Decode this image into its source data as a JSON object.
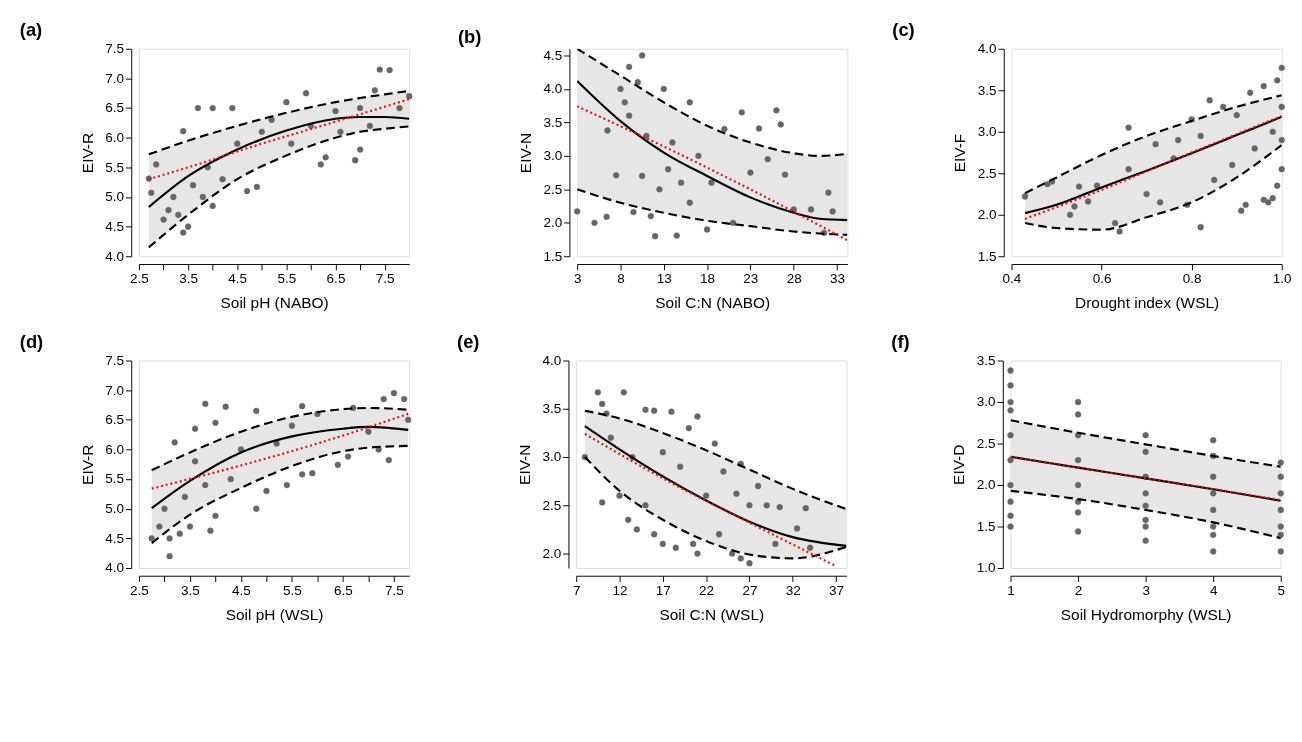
{
  "chart_data": [
    {
      "type": "scatter",
      "title": "(a)",
      "xlabel": "Soil pH (NABO)",
      "ylabel": "EIV-R",
      "xlim": [
        2.5,
        8.0
      ],
      "ylim": [
        4.0,
        7.5
      ],
      "xticks": [
        2.5,
        {
          "value": 3,
          "label": null
        },
        3.5,
        {
          "value": 4,
          "label": null
        },
        4.5,
        {
          "value": 5,
          "label": null
        },
        5.5,
        {
          "value": 6,
          "label": null
        },
        6.5,
        {
          "value": 7,
          "label": null
        },
        7.5
      ],
      "yticks": [
        {
          "value": 4,
          "label": "4.0"
        },
        4.5,
        {
          "value": 5,
          "label": "5.0"
        },
        5.5,
        {
          "value": 6,
          "label": "6.0"
        },
        6.5,
        {
          "value": 7,
          "label": "7.0"
        },
        7.5
      ],
      "series": [
        {
          "type": "scatter",
          "color": "#666666",
          "marker": "circle",
          "x": [
            2.7,
            2.75,
            2.85,
            3.0,
            3.1,
            3.2,
            3.3,
            3.4,
            3.4,
            3.5,
            3.6,
            3.7,
            3.8,
            3.9,
            4.0,
            4.0,
            4.2,
            4.4,
            4.5,
            4.7,
            4.9,
            5.0,
            5.2,
            5.5,
            5.6,
            5.9,
            6.0,
            6.2,
            6.3,
            6.5,
            6.6,
            6.9,
            7.0,
            7.0,
            7.2,
            7.3,
            7.4,
            7.6,
            7.8,
            8.0
          ],
          "values": [
            5.31,
            5.07,
            5.55,
            4.62,
            4.78,
            5.0,
            4.7,
            4.4,
            6.11,
            4.5,
            5.2,
            6.5,
            5.0,
            5.5,
            6.5,
            4.85,
            5.3,
            6.5,
            5.9,
            5.1,
            5.17,
            6.1,
            6.3,
            6.6,
            5.9,
            6.75,
            6.2,
            5.55,
            5.67,
            6.45,
            6.1,
            5.62,
            5.8,
            6.5,
            6.2,
            6.8,
            7.15,
            7.14,
            6.5,
            6.7
          ]
        },
        {
          "type": "line",
          "color": "#000000",
          "line_style": "solid",
          "x": [
            2.7,
            3.5,
            4.5,
            5.5,
            6.5,
            7.0,
            7.5,
            8.0
          ],
          "values": [
            4.83,
            5.35,
            5.8,
            6.12,
            6.32,
            6.35,
            6.35,
            6.32
          ],
          "lower": [
            4.15,
            4.7,
            5.3,
            5.7,
            6.0,
            6.1,
            6.15,
            6.19
          ],
          "upper": [
            5.72,
            5.95,
            6.2,
            6.42,
            6.6,
            6.67,
            6.73,
            6.79
          ]
        },
        {
          "type": "line",
          "color": "#000000",
          "line_style": "dashed",
          "x": [
            2.7,
            3.5,
            4.5,
            5.5,
            6.5,
            7.0,
            7.5,
            8.0
          ],
          "values": [
            4.15,
            4.7,
            5.3,
            5.7,
            6.0,
            6.1,
            6.15,
            6.19
          ]
        },
        {
          "type": "line",
          "color": "#000000",
          "line_style": "dashed",
          "x": [
            2.7,
            3.5,
            4.5,
            5.5,
            6.5,
            7.0,
            7.5,
            8.0
          ],
          "values": [
            5.72,
            5.95,
            6.2,
            6.42,
            6.6,
            6.67,
            6.73,
            6.79
          ]
        },
        {
          "type": "line",
          "color": "#ff0000",
          "line_style": "dotted",
          "x": [
            2.7,
            3.5,
            5.0,
            6.5,
            8.0
          ],
          "values": [
            5.3,
            5.5,
            5.9,
            6.27,
            6.65
          ]
        }
      ]
    },
    {
      "type": "scatter",
      "title": "(b)",
      "xlabel": "Soil C:N (NABO)",
      "ylabel": "EIV-N",
      "xlim": [
        3,
        34.2
      ],
      "ylim": [
        1.5,
        4.6
      ],
      "xticks": [
        3,
        8,
        13,
        18,
        23,
        28,
        33
      ],
      "yticks": [
        1.5,
        {
          "value": 2,
          "label": "2.0"
        },
        2.5,
        {
          "value": 3,
          "label": "3.0"
        },
        3.5,
        {
          "value": 4,
          "label": "4.0"
        },
        4.5
      ],
      "series": [
        {
          "type": "scatter",
          "color": "#666666",
          "marker": "circle",
          "x": [
            3,
            5,
            6.4,
            6.5,
            7.5,
            8,
            8.5,
            9,
            9,
            9.5,
            10,
            10.5,
            10.5,
            11,
            11.5,
            12,
            12.5,
            13,
            13.5,
            14,
            14.5,
            15,
            16,
            16,
            17,
            18,
            18.5,
            20,
            21,
            22,
            23,
            24,
            25,
            26,
            26.5,
            27,
            28,
            30,
            32,
            32.5,
            31.5
          ],
          "values": [
            2.17,
            2.0,
            2.09,
            3.38,
            2.71,
            4.0,
            3.8,
            4.33,
            3.6,
            2.16,
            4.1,
            4.5,
            2.7,
            3.3,
            2.1,
            1.8,
            2.5,
            4.0,
            2.8,
            3.2,
            1.81,
            2.6,
            3.8,
            2.3,
            3.0,
            1.9,
            2.6,
            3.4,
            2.0,
            3.65,
            2.75,
            3.41,
            2.95,
            3.68,
            3.47,
            2.72,
            2.2,
            2.2,
            2.45,
            2.17,
            1.85
          ]
        },
        {
          "type": "line",
          "color": "#000000",
          "line_style": "solid",
          "x": [
            3,
            8,
            13,
            18,
            23,
            28,
            31,
            34.2
          ],
          "values": [
            4.12,
            3.52,
            3.05,
            2.7,
            2.38,
            2.15,
            2.06,
            2.04
          ],
          "lower": [
            2.5,
            2.3,
            2.15,
            2.03,
            1.95,
            1.87,
            1.84,
            1.82
          ],
          "upper": [
            4.6,
            4.2,
            3.8,
            3.45,
            3.2,
            3.04,
            3.0,
            3.03
          ]
        },
        {
          "type": "line",
          "color": "#000000",
          "line_style": "dashed",
          "x": [
            3,
            8,
            13,
            18,
            23,
            28,
            31,
            34.2
          ],
          "values": [
            2.5,
            2.3,
            2.15,
            2.03,
            1.95,
            1.87,
            1.84,
            1.82
          ]
        },
        {
          "type": "line",
          "color": "#000000",
          "line_style": "dashed",
          "x": [
            3,
            8,
            13,
            18,
            23,
            28,
            31,
            34.2
          ],
          "values": [
            4.6,
            4.2,
            3.8,
            3.45,
            3.2,
            3.04,
            3.0,
            3.03
          ]
        },
        {
          "type": "line",
          "color": "#ff0000",
          "line_style": "dotted",
          "x": [
            3,
            13,
            23,
            34.2
          ],
          "values": [
            3.74,
            3.14,
            2.5,
            1.74
          ]
        }
      ]
    },
    {
      "type": "scatter",
      "title": "(c)",
      "xlabel": "Drought index (WSL)",
      "ylabel": "EIV-F",
      "xlim": [
        0.4,
        1.0
      ],
      "ylim": [
        1.5,
        4.0
      ],
      "xticks": [
        0.4,
        0.6,
        0.8,
        {
          "value": 1,
          "label": "1.0"
        }
      ],
      "yticks": [
        1.5,
        {
          "value": 2,
          "label": "2.0"
        },
        2.5,
        {
          "value": 3,
          "label": "3.0"
        },
        3.5,
        {
          "value": 4,
          "label": "4.0"
        }
      ],
      "series": [
        {
          "type": "scatter",
          "color": "#666666",
          "marker": "circle",
          "x": [
            0.43,
            0.48,
            0.49,
            0.53,
            0.54,
            0.55,
            0.57,
            0.59,
            0.63,
            0.64,
            0.66,
            0.66,
            0.7,
            0.72,
            0.73,
            0.76,
            0.77,
            0.79,
            0.8,
            0.82,
            0.82,
            0.84,
            0.85,
            0.87,
            0.89,
            0.9,
            0.91,
            0.92,
            0.93,
            0.94,
            0.96,
            0.96,
            0.97,
            0.98,
            0.98,
            0.99,
            0.99,
            1.0,
            1.0,
            1.0,
            1.0
          ],
          "values": [
            2.22,
            2.37,
            2.4,
            2.0,
            2.1,
            2.34,
            2.16,
            2.35,
            1.9,
            1.8,
            3.05,
            2.55,
            2.25,
            2.85,
            2.15,
            2.68,
            2.9,
            2.12,
            3.15,
            1.85,
            2.95,
            3.38,
            2.42,
            3.3,
            2.6,
            3.2,
            2.05,
            2.12,
            3.47,
            2.8,
            3.55,
            2.18,
            2.15,
            3.0,
            2.2,
            3.62,
            2.35,
            3.77,
            2.55,
            3.3,
            2.9
          ]
        },
        {
          "type": "line",
          "color": "#000000",
          "line_style": "solid",
          "x": [
            0.43,
            0.5,
            0.6,
            0.7,
            0.8,
            0.9,
            1.0
          ],
          "values": [
            2.02,
            2.12,
            2.33,
            2.53,
            2.74,
            2.96,
            3.18
          ],
          "lower": [
            1.9,
            1.84,
            1.82,
            1.97,
            2.15,
            2.45,
            2.84
          ],
          "upper": [
            2.26,
            2.45,
            2.72,
            2.95,
            3.13,
            3.3,
            3.44
          ]
        },
        {
          "type": "line",
          "color": "#000000",
          "line_style": "dashed",
          "x": [
            0.43,
            0.5,
            0.6,
            0.7,
            0.8,
            0.9,
            1.0
          ],
          "values": [
            1.9,
            1.84,
            1.82,
            1.97,
            2.15,
            2.45,
            2.84
          ]
        },
        {
          "type": "line",
          "color": "#000000",
          "line_style": "dashed",
          "x": [
            0.43,
            0.5,
            0.6,
            0.7,
            0.8,
            0.9,
            1.0
          ],
          "values": [
            2.26,
            2.45,
            2.72,
            2.95,
            3.13,
            3.3,
            3.44
          ]
        },
        {
          "type": "line",
          "color": "#ff0000",
          "line_style": "dotted",
          "x": [
            0.43,
            0.6,
            0.8,
            1.0
          ],
          "values": [
            1.95,
            2.3,
            2.75,
            3.19
          ]
        }
      ]
    },
    {
      "type": "scatter",
      "title": "(d)",
      "xlabel": "Soil pH (WSL)",
      "ylabel": "EIV-R",
      "xlim": [
        2.5,
        7.8
      ],
      "ylim": [
        4.0,
        7.5
      ],
      "xticks": [
        2.5,
        {
          "value": 3,
          "label": null
        },
        3.5,
        {
          "value": 4,
          "label": null
        },
        4.5,
        {
          "value": 5,
          "label": null
        },
        5.5,
        {
          "value": 6,
          "label": null
        },
        6.5,
        {
          "value": 7,
          "label": null
        },
        7.5
      ],
      "yticks": [
        {
          "value": 4,
          "label": "4.0"
        },
        4.5,
        {
          "value": 5,
          "label": "5.0"
        },
        5.5,
        {
          "value": 6,
          "label": "6.0"
        },
        6.5,
        {
          "value": 7,
          "label": "7.0"
        },
        7.5
      ],
      "series": [
        {
          "type": "scatter",
          "color": "#666666",
          "marker": "circle",
          "x": [
            2.75,
            2.9,
            3.0,
            3.1,
            3.1,
            3.3,
            3.2,
            3.4,
            3.5,
            3.6,
            3.6,
            3.8,
            3.8,
            3.9,
            4.0,
            4.0,
            4.2,
            4.3,
            4.5,
            4.8,
            4.8,
            5.0,
            5.2,
            5.4,
            5.5,
            5.7,
            5.7,
            5.9,
            6.0,
            6.4,
            6.6,
            6.7,
            7.0,
            7.2,
            7.3,
            7.4,
            7.5,
            7.7,
            7.78
          ],
          "values": [
            4.5,
            4.7,
            5.0,
            4.2,
            4.5,
            4.58,
            6.12,
            5.2,
            4.7,
            5.8,
            6.35,
            6.77,
            5.4,
            4.63,
            6.45,
            4.88,
            6.72,
            5.5,
            6.0,
            5.0,
            6.65,
            5.3,
            6.1,
            5.4,
            6.4,
            5.58,
            6.73,
            5.6,
            6.6,
            5.74,
            5.88,
            6.7,
            6.3,
            6.0,
            6.85,
            5.82,
            6.95,
            6.85,
            6.5
          ]
        },
        {
          "type": "line",
          "color": "#000000",
          "line_style": "solid",
          "x": [
            2.75,
            3.5,
            4.5,
            5.5,
            6.5,
            7.0,
            7.78
          ],
          "values": [
            5.01,
            5.47,
            5.95,
            6.22,
            6.35,
            6.38,
            6.33
          ],
          "lower": [
            4.42,
            4.9,
            5.35,
            5.72,
            5.97,
            6.03,
            6.06
          ],
          "upper": [
            5.65,
            5.95,
            6.3,
            6.55,
            6.68,
            6.7,
            6.67
          ]
        },
        {
          "type": "line",
          "color": "#000000",
          "line_style": "dashed",
          "x": [
            2.75,
            3.5,
            4.5,
            5.5,
            6.5,
            7.0,
            7.78
          ],
          "values": [
            4.42,
            4.9,
            5.35,
            5.72,
            5.97,
            6.03,
            6.06
          ]
        },
        {
          "type": "line",
          "color": "#000000",
          "line_style": "dashed",
          "x": [
            2.75,
            3.5,
            4.5,
            5.5,
            6.5,
            7.0,
            7.78
          ],
          "values": [
            5.65,
            5.95,
            6.3,
            6.55,
            6.68,
            6.7,
            6.67
          ]
        },
        {
          "type": "line",
          "color": "#ff0000",
          "line_style": "dotted",
          "x": [
            2.75,
            4.5,
            6.0,
            7.78
          ],
          "values": [
            5.34,
            5.73,
            6.1,
            6.6
          ]
        }
      ]
    },
    {
      "type": "scatter",
      "title": "(e)",
      "xlabel": "Soil C:N (WSL)",
      "ylabel": "EIV-N",
      "xlim": [
        7,
        38.2
      ],
      "ylim": [
        1.85,
        4.0
      ],
      "xticks": [
        7,
        12,
        17,
        22,
        27,
        32,
        37
      ],
      "yticks": [
        {
          "value": 2,
          "label": "2.0"
        },
        2.5,
        {
          "value": 3,
          "label": "3.0"
        },
        3.5,
        {
          "value": 4,
          "label": "4.0"
        }
      ],
      "series": [
        {
          "type": "scatter",
          "color": "#666666",
          "marker": "circle",
          "x": [
            8,
            9.5,
            10,
            10,
            10.5,
            11,
            12,
            12.5,
            13,
            13.5,
            14,
            15,
            15,
            16,
            16,
            17,
            17,
            18,
            18.5,
            19,
            20,
            20.5,
            21,
            21,
            22,
            23,
            23.5,
            24,
            25,
            25.5,
            26,
            26,
            27,
            27,
            28,
            29,
            30,
            30.5,
            33.5,
            32.5,
            34
          ],
          "values": [
            3.0,
            3.67,
            3.55,
            2.53,
            3.45,
            3.2,
            2.6,
            3.67,
            2.35,
            3.0,
            2.25,
            3.49,
            2.5,
            3.48,
            2.2,
            3.05,
            2.1,
            3.47,
            2.06,
            2.9,
            3.3,
            2.1,
            3.42,
            2.0,
            2.6,
            3.14,
            2.2,
            2.85,
            2.0,
            2.62,
            2.93,
            1.95,
            1.9,
            2.5,
            2.7,
            2.5,
            2.1,
            2.48,
            2.47,
            2.26,
            2.06
          ]
        },
        {
          "type": "line",
          "color": "#000000",
          "line_style": "solid",
          "x": [
            8,
            12,
            17,
            22,
            27,
            32,
            38.2
          ],
          "values": [
            3.32,
            3.08,
            2.8,
            2.55,
            2.33,
            2.17,
            2.08
          ],
          "lower": [
            3.0,
            2.65,
            2.35,
            2.13,
            1.99,
            1.95,
            2.07
          ],
          "upper": [
            3.48,
            3.4,
            3.25,
            3.07,
            2.87,
            2.67,
            2.46
          ]
        },
        {
          "type": "line",
          "color": "#000000",
          "line_style": "dashed",
          "x": [
            8,
            12,
            17,
            22,
            27,
            32,
            38.2
          ],
          "values": [
            3.0,
            2.65,
            2.35,
            2.13,
            1.99,
            1.95,
            2.07
          ]
        },
        {
          "type": "line",
          "color": "#000000",
          "line_style": "dashed",
          "x": [
            8,
            12,
            17,
            22,
            27,
            32,
            38.2
          ],
          "values": [
            3.48,
            3.4,
            3.25,
            3.07,
            2.87,
            2.67,
            2.46
          ]
        },
        {
          "type": "line",
          "color": "#ff0000",
          "line_style": "dotted",
          "x": [
            8,
            17,
            27,
            37
          ],
          "values": [
            3.24,
            2.78,
            2.32,
            1.87
          ]
        }
      ]
    },
    {
      "type": "scatter",
      "title": "(f)",
      "xlabel": "Soil Hydromorphy (WSL)",
      "ylabel": "EIV-D",
      "xlim": [
        1,
        5
      ],
      "ylim": [
        1.0,
        3.5
      ],
      "xticks": [
        1,
        2,
        3,
        4,
        5
      ],
      "yticks": [
        {
          "value": 1,
          "label": "1.0"
        },
        1.5,
        {
          "value": 2,
          "label": "2.0"
        },
        2.5,
        {
          "value": 3,
          "label": "3.0"
        },
        3.5
      ],
      "series": [
        {
          "type": "scatter",
          "color": "#666666",
          "marker": "circle",
          "x": [
            1,
            1,
            1,
            1,
            1,
            1,
            1,
            1,
            1,
            1,
            2,
            2,
            2,
            2,
            2,
            2,
            2,
            2,
            3,
            3,
            3,
            3,
            3,
            3,
            3,
            3,
            4,
            4,
            4,
            4,
            4,
            4,
            4,
            4,
            5,
            5,
            5,
            5,
            5,
            5,
            5
          ],
          "values": [
            3.38,
            3.2,
            3.0,
            2.9,
            2.6,
            2.3,
            2.0,
            1.8,
            1.63,
            1.5,
            3.0,
            2.85,
            2.6,
            2.3,
            2.0,
            1.8,
            1.67,
            1.44,
            2.6,
            2.4,
            2.1,
            1.9,
            1.75,
            1.58,
            1.5,
            1.33,
            2.54,
            2.35,
            2.1,
            1.9,
            1.7,
            1.5,
            1.4,
            1.2,
            2.27,
            2.1,
            1.9,
            1.7,
            1.5,
            1.4,
            1.2
          ]
        },
        {
          "type": "line",
          "color": "#000000",
          "line_style": "solid",
          "x": [
            1,
            2,
            3,
            4,
            5
          ],
          "values": [
            2.34,
            2.21,
            2.08,
            1.95,
            1.81
          ],
          "lower": [
            1.93,
            1.83,
            1.7,
            1.55,
            1.36
          ],
          "upper": [
            2.78,
            2.63,
            2.49,
            2.35,
            2.22
          ]
        },
        {
          "type": "line",
          "color": "#000000",
          "line_style": "dashed",
          "x": [
            1,
            2,
            3,
            4,
            5
          ],
          "values": [
            1.93,
            1.83,
            1.7,
            1.55,
            1.36
          ]
        },
        {
          "type": "line",
          "color": "#000000",
          "line_style": "dashed",
          "x": [
            1,
            2,
            3,
            4,
            5
          ],
          "values": [
            2.78,
            2.63,
            2.49,
            2.35,
            2.22
          ]
        },
        {
          "type": "line",
          "color": "#ff0000",
          "line_style": "dotted",
          "x": [
            1,
            2,
            3,
            4,
            5
          ],
          "values": [
            2.34,
            2.21,
            2.08,
            1.95,
            1.82
          ]
        }
      ]
    }
  ]
}
